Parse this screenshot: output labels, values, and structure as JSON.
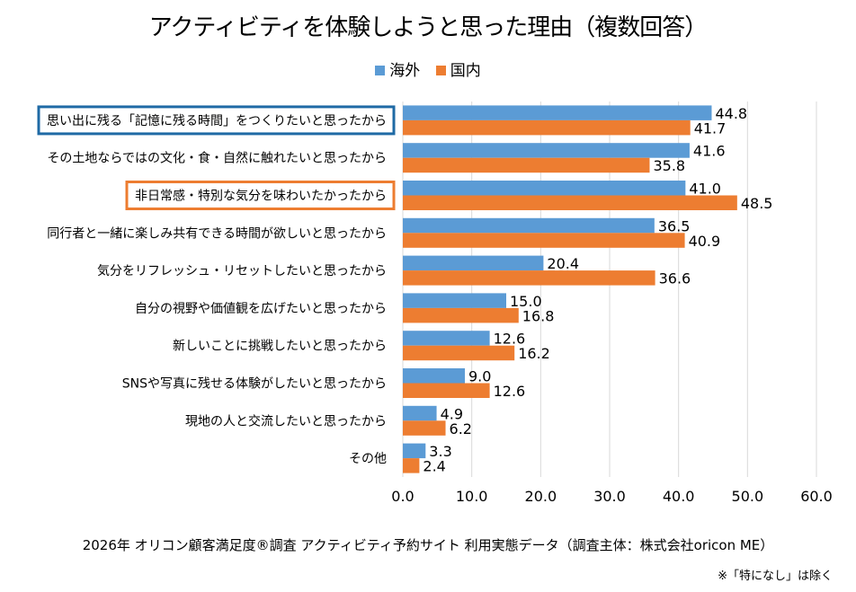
{
  "chart_data": {
    "type": "bar",
    "orientation": "horizontal",
    "title": "アクティビティを体験しようと思った理由（複数回答）",
    "categories": [
      "思い出に残る「記憶に残る時間」をつくりたいと思ったから",
      "その土地ならではの文化・食・自然に触れたいと思ったから",
      "非日常感・特別な気分を味わいたかったから",
      "同行者と一緒に楽しみ共有できる時間が欲しいと思ったから",
      "気分をリフレッシュ・リセットしたいと思ったから",
      "自分の視野や価値観を広げたいと思ったから",
      "新しいことに挑戦したいと思ったから",
      "SNSや写真に残せる体験がしたいと思ったから",
      "現地の人と交流したいと思ったから",
      "その他"
    ],
    "series": [
      {
        "name": "海外",
        "color": "#5b9bd5",
        "values": [
          44.8,
          41.6,
          41.0,
          36.5,
          20.4,
          15.0,
          12.6,
          9.0,
          4.9,
          3.3
        ],
        "labels": [
          "44.8",
          "41.6",
          "41.0",
          "36.5",
          "20.4",
          "15.0",
          "12.6",
          "9.0",
          "4.9",
          "3.3"
        ]
      },
      {
        "name": "国内",
        "color": "#ed7d31",
        "values": [
          41.7,
          35.8,
          48.5,
          40.9,
          36.6,
          16.8,
          16.2,
          12.6,
          6.2,
          2.4
        ],
        "labels": [
          "41.7",
          "35.8",
          "48.5",
          "40.9",
          "36.6",
          "16.8",
          "16.2",
          "12.6",
          "6.2",
          "2.4"
        ]
      }
    ],
    "xlim": [
      0,
      60
    ],
    "xticks": [
      "0.0",
      "10.0",
      "20.0",
      "30.0",
      "40.0",
      "50.0",
      "60.0"
    ],
    "grid": true,
    "legend_position": "top",
    "highlighted": [
      {
        "category_index": 0,
        "color": "#1f6aa5"
      },
      {
        "category_index": 2,
        "color": "#ed7d31"
      }
    ]
  },
  "footer": "2026年 オリコン顧客満足度®調査 アクティビティ予約サイト 利用実態データ（調査主体：株式会社oricon ME）",
  "note": "※「特になし」は除く"
}
